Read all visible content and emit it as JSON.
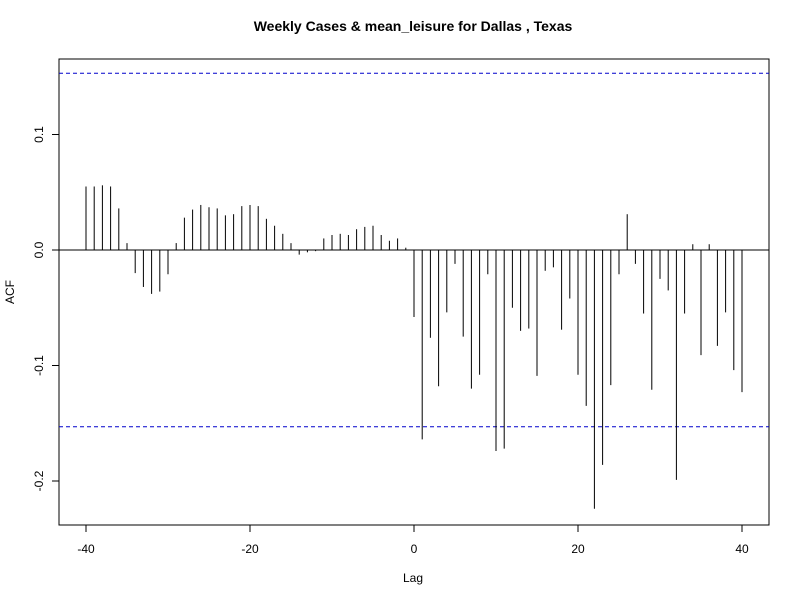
{
  "chart_data": {
    "type": "bar",
    "title": "Weekly Cases & mean_leisure for Dallas , Texas",
    "xlabel": "Lag",
    "ylabel": "ACF",
    "xlim": [
      -41,
      41
    ],
    "ylim": [
      -0.24,
      0.165
    ],
    "x_ticks": [
      -40,
      -20,
      0,
      20,
      40
    ],
    "x_tick_labels": [
      "-40",
      "-20",
      "0",
      "20",
      "40"
    ],
    "y_ticks": [
      -0.2,
      -0.1,
      0.0,
      0.1
    ],
    "y_tick_labels": [
      "-0.2",
      "-0.1",
      "0.0",
      "0.1"
    ],
    "confidence_bound": 0.153,
    "grid": false,
    "series": [
      {
        "lags": [
          -40,
          -39,
          -38,
          -37,
          -36,
          -35,
          -34,
          -33,
          -32,
          -31,
          -30,
          -29,
          -28,
          -27,
          -26,
          -25,
          -24,
          -23,
          -22,
          -21,
          -20,
          -19,
          -18,
          -17,
          -16,
          -15,
          -14,
          -13,
          -12,
          -11,
          -10,
          -9,
          -8,
          -7,
          -6,
          -5,
          -4,
          -3,
          -2,
          -1,
          0,
          1,
          2,
          3,
          4,
          5,
          6,
          7,
          8,
          9,
          10,
          11,
          12,
          13,
          14,
          15,
          16,
          17,
          18,
          19,
          20,
          21,
          22,
          23,
          24,
          25,
          26,
          27,
          28,
          29,
          30,
          31,
          32,
          33,
          34,
          35,
          36,
          37,
          38,
          39,
          40
        ],
        "values": [
          0.055,
          0.055,
          0.056,
          0.055,
          0.036,
          0.006,
          -0.02,
          -0.032,
          -0.038,
          -0.036,
          -0.021,
          0.006,
          0.028,
          0.035,
          0.039,
          0.037,
          0.036,
          0.03,
          0.031,
          0.038,
          0.039,
          0.038,
          0.027,
          0.021,
          0.014,
          0.006,
          -0.004,
          -0.002,
          -0.001,
          0.01,
          0.013,
          0.014,
          0.013,
          0.018,
          0.02,
          0.021,
          0.013,
          0.008,
          0.01,
          0.002,
          -0.058,
          -0.164,
          -0.076,
          -0.118,
          -0.054,
          -0.012,
          -0.075,
          -0.12,
          -0.108,
          -0.021,
          -0.174,
          -0.172,
          -0.05,
          -0.07,
          -0.068,
          -0.109,
          -0.018,
          -0.015,
          -0.069,
          -0.042,
          -0.108,
          -0.135,
          -0.224,
          -0.186,
          -0.117,
          -0.021,
          0.031,
          -0.012,
          -0.055,
          -0.121,
          -0.025,
          -0.035,
          -0.199,
          -0.055,
          0.005,
          -0.091,
          0.005,
          -0.083,
          -0.054,
          -0.104,
          -0.123
        ]
      }
    ]
  }
}
